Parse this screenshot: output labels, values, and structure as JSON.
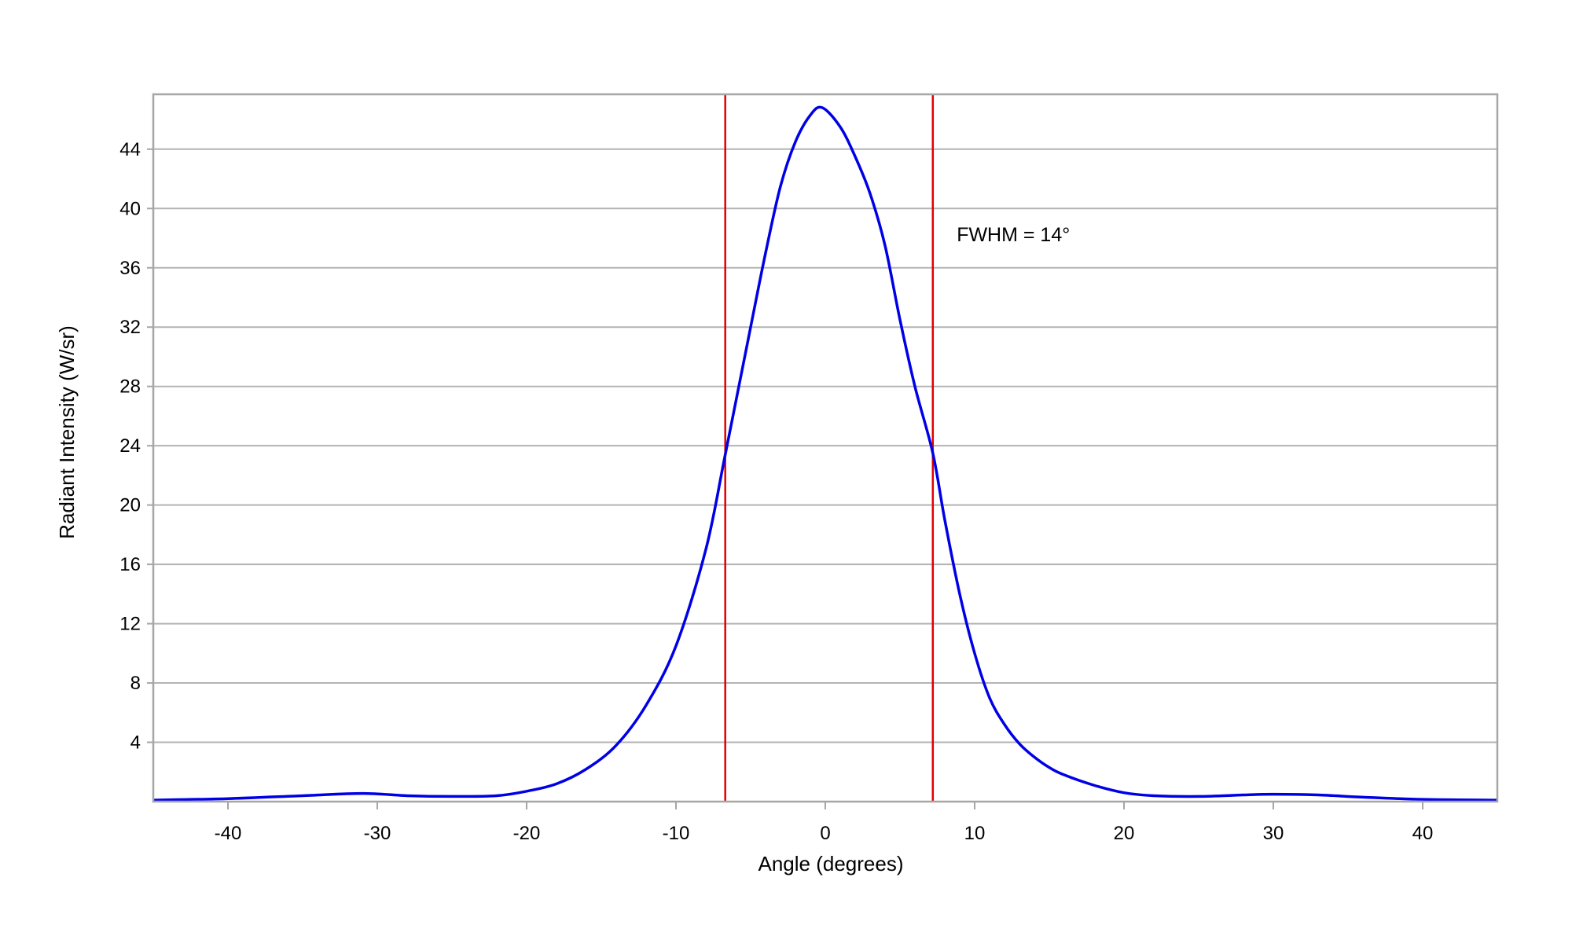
{
  "chart_data": {
    "type": "line",
    "title": "",
    "xlabel": "Angle (degrees)",
    "ylabel": "Radiant Intensity (W/sr)",
    "xlim": [
      -45,
      45
    ],
    "ylim": [
      0,
      47.7
    ],
    "xticks": [
      -40,
      -30,
      -20,
      -10,
      0,
      10,
      20,
      30,
      40
    ],
    "yticks": [
      4,
      8,
      12,
      16,
      20,
      24,
      28,
      32,
      36,
      40,
      44
    ],
    "grid": "horizontal",
    "series": [
      {
        "name": "Radiant Intensity",
        "color": "#0000e6",
        "x": [
          -45,
          -40,
          -35,
          -31,
          -28,
          -25,
          -22,
          -20,
          -18,
          -16,
          -14,
          -12,
          -10,
          -8,
          -6.7,
          -5,
          -4,
          -3,
          -2,
          -1,
          -0.2,
          1,
          2,
          3,
          4,
          5,
          6,
          7.2,
          8,
          9,
          10,
          11,
          12,
          13,
          14,
          15,
          16,
          18,
          20,
          22,
          25,
          28,
          30,
          33,
          36,
          40,
          45
        ],
        "y": [
          0.1,
          0.2,
          0.4,
          0.55,
          0.4,
          0.35,
          0.4,
          0.7,
          1.2,
          2.2,
          3.8,
          6.5,
          10.5,
          17,
          23.4,
          32,
          37,
          41.5,
          44.5,
          46.3,
          46.8,
          45.5,
          43.5,
          41,
          37.5,
          32.5,
          28,
          23.5,
          19,
          14,
          10,
          7,
          5.2,
          3.9,
          3,
          2.3,
          1.8,
          1.1,
          0.6,
          0.4,
          0.35,
          0.45,
          0.5,
          0.45,
          0.3,
          0.15,
          0.1
        ]
      }
    ],
    "vlines": [
      {
        "x": -6.7,
        "color": "#e00000"
      },
      {
        "x": 7.2,
        "color": "#e00000"
      }
    ],
    "annotations": [
      {
        "text": "FWHM = 14°",
        "x": 8.8,
        "y": 37.8
      }
    ]
  }
}
